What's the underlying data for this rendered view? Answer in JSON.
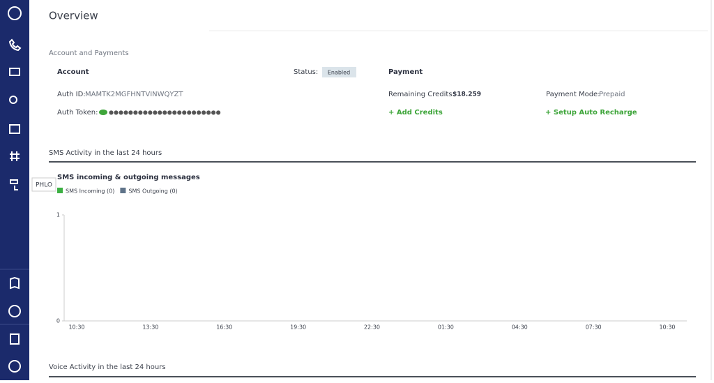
{
  "sidebar": {
    "tooltip": "PHLO"
  },
  "header": {
    "title": "Overview"
  },
  "account": {
    "section_title": "Account and Payments",
    "account_heading": "Account",
    "status_label": "Status:",
    "status_value": "Enabled",
    "payment_heading": "Payment",
    "auth_id_label": "Auth ID:",
    "auth_id_value": "MAMTK2MGFHNTVINWQYZT",
    "remaining_credits_label": "Remaining Credits:",
    "remaining_credits_value": "$18.259",
    "payment_mode_label": "Payment Mode:",
    "payment_mode_value": "Prepaid",
    "auth_token_label": "Auth Token:",
    "auth_token_value": "●●●●●●●●●●●●●●●●●●●●●●●",
    "add_credits": "+ Add Credits",
    "auto_recharge": "+ Setup Auto Recharge"
  },
  "sms_section": {
    "title": "SMS Activity in the last 24 hours"
  },
  "chart_data": {
    "type": "bar",
    "title": "SMS incoming & outgoing messages",
    "categories": [
      "10:30",
      null,
      null,
      "13:30",
      null,
      null,
      "16:30",
      null,
      null,
      "19:30",
      null,
      null,
      "22:30",
      null,
      null,
      "01:30",
      null,
      null,
      "04:30",
      null,
      null,
      "07:30",
      null,
      null,
      "10:30"
    ],
    "series": [
      {
        "name": "SMS Incoming (0)",
        "color": "#3cb043",
        "values": [
          0,
          0,
          0,
          0,
          0,
          0,
          0,
          0,
          0,
          0,
          0,
          0,
          0,
          0,
          0,
          0,
          0,
          0,
          0,
          0,
          0,
          0,
          0,
          0,
          0
        ]
      },
      {
        "name": "SMS Outgoing (0)",
        "color": "#5f7389",
        "values": [
          0,
          0,
          0,
          0,
          0,
          0,
          0,
          0,
          0,
          0,
          0,
          0,
          0,
          0,
          0,
          0,
          0,
          0,
          0,
          0,
          0,
          0,
          0,
          0,
          0
        ]
      }
    ],
    "ylim": [
      0,
      1
    ],
    "yticks": [
      0,
      1
    ],
    "legend": "top-left"
  },
  "voice_section": {
    "title": "Voice Activity in the last 24 hours"
  }
}
